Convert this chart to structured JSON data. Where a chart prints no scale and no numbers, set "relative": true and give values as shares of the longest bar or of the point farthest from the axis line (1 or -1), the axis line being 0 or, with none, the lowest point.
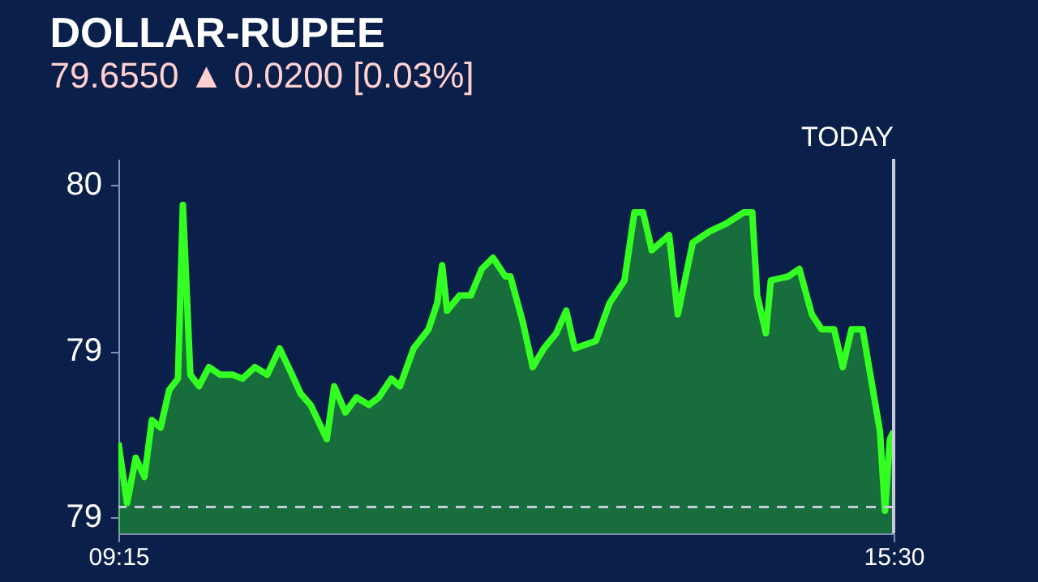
{
  "chart_data": {
    "type": "area",
    "title": "DOLLAR-RUPEE",
    "subtitle": "79.6550 ▲ 0.0200 [0.03%]",
    "x": [
      9.25,
      9.32,
      9.39,
      9.46,
      9.52,
      9.59,
      9.66,
      9.73,
      9.77,
      9.83,
      9.9,
      9.98,
      10.07,
      10.17,
      10.25,
      10.35,
      10.45,
      10.55,
      10.65,
      10.72,
      10.8,
      10.93,
      10.99,
      11.08,
      11.17,
      11.27,
      11.35,
      11.45,
      11.52,
      11.63,
      11.75,
      11.82,
      11.86,
      11.9,
      12.0,
      12.09,
      12.18,
      12.27,
      12.37,
      12.41,
      12.51,
      12.59,
      12.68,
      12.78,
      12.86,
      12.93,
      13.1,
      13.21,
      13.33,
      13.41,
      13.48,
      13.55,
      13.69,
      13.76,
      13.88,
      14.02,
      14.15,
      14.29,
      14.36,
      14.4,
      14.47,
      14.51,
      14.65,
      14.74,
      14.84,
      14.92,
      15.02,
      15.09,
      15.16,
      15.25,
      15.39,
      15.43,
      15.47,
      15.5
    ],
    "relative": true,
    "series": [
      {
        "color": "#33ff22",
        "values": [
          0.276,
          0.092,
          0.23,
          0.172,
          0.345,
          0.322,
          0.437,
          0.471,
          1,
          0.483,
          0.448,
          0.506,
          0.483,
          0.483,
          0.471,
          0.506,
          0.483,
          0.563,
          0.483,
          0.425,
          0.391,
          0.287,
          0.448,
          0.368,
          0.414,
          0.391,
          0.414,
          0.471,
          0.448,
          0.563,
          0.621,
          0.701,
          0.816,
          0.678,
          0.724,
          0.724,
          0.805,
          0.839,
          0.782,
          0.782,
          0.644,
          0.506,
          0.563,
          0.609,
          0.678,
          0.563,
          0.586,
          0.701,
          0.77,
          0.977,
          0.977,
          0.862,
          0.908,
          0.667,
          0.885,
          0.92,
          0.943,
          0.977,
          0.977,
          0.724,
          0.609,
          0.77,
          0.782,
          0.805,
          0.667,
          0.621,
          0.621,
          0.506,
          0.621,
          0.621,
          0.31,
          0.069,
          0.287,
          0.31
        ]
      }
    ],
    "xlim": [
      9.25,
      15.5
    ],
    "xticks": [
      {
        "value": 9.25,
        "label": "09:15"
      },
      {
        "value": 15.5,
        "label": "15:30"
      }
    ],
    "annotations": [
      "80",
      "79",
      "79"
    ],
    "ref_lines": [
      {
        "axis": "y",
        "value": 0.08,
        "color": "#c8ccd8",
        "line_style": "dashed"
      },
      {
        "axis": "x",
        "value": 15.5,
        "label": "TODAY",
        "color": "#c8ccd8",
        "line_style": "solid"
      }
    ]
  }
}
